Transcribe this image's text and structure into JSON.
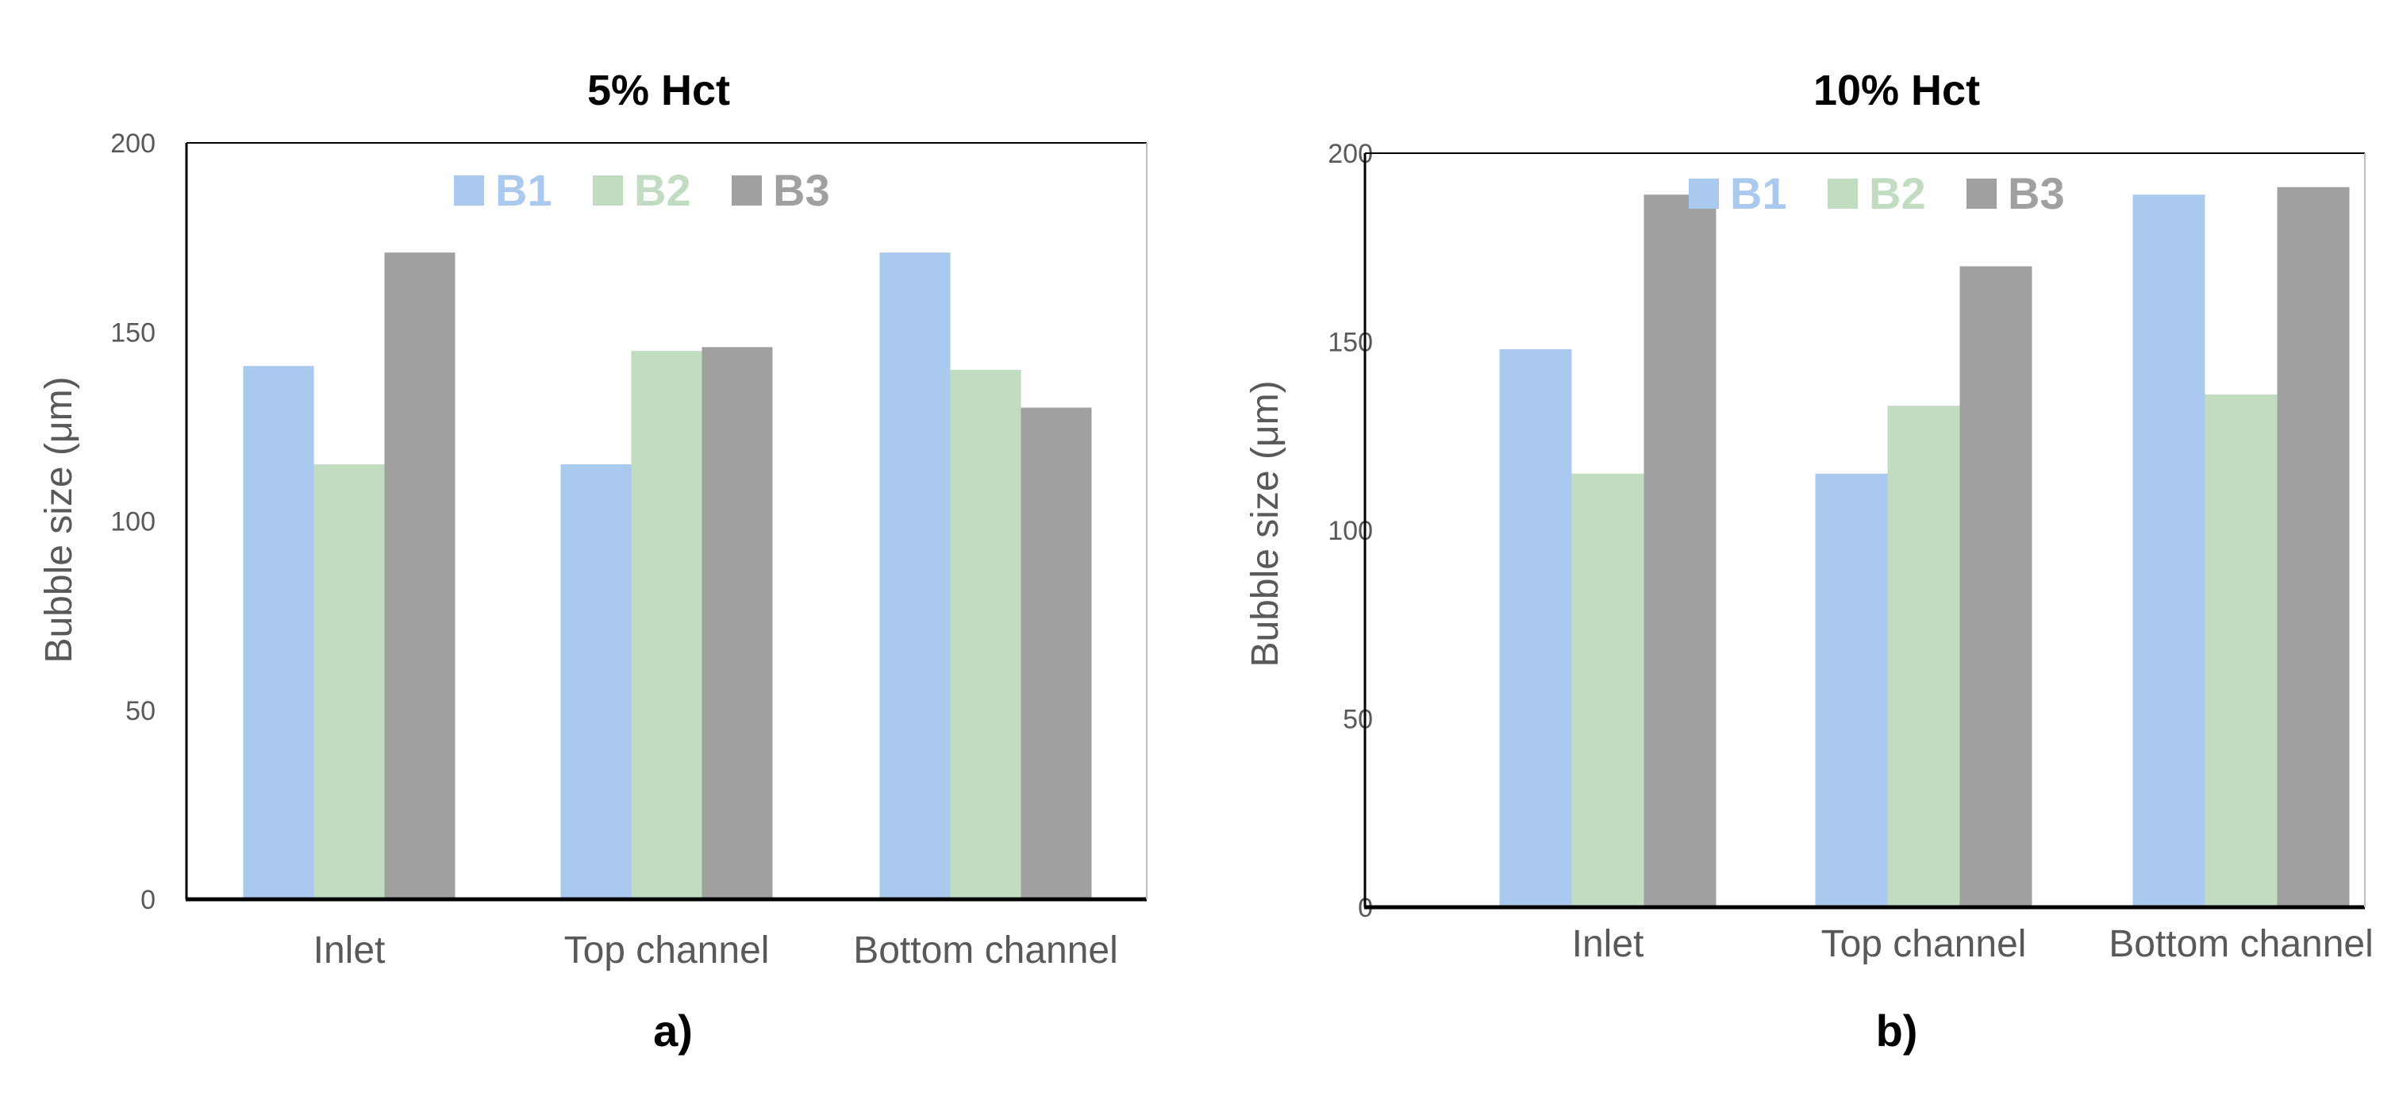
{
  "colors": {
    "B1": "#a9c9ef",
    "B2": "#c1dcc1",
    "B3": "#a0a0a0",
    "axis": "#000000",
    "text": "#595959"
  },
  "chart_data": [
    {
      "type": "bar",
      "title": "5% Hct",
      "panel_label": "a)",
      "categories": [
        "Inlet",
        "Top channel",
        "Bottom channel"
      ],
      "series": [
        {
          "name": "B1",
          "values": [
            141,
            115,
            171
          ]
        },
        {
          "name": "B2",
          "values": [
            115,
            145,
            140
          ]
        },
        {
          "name": "B3",
          "values": [
            171,
            146,
            130
          ]
        }
      ],
      "ylabel": "Bubble size (μm)",
      "xlabel": "",
      "ylim": [
        0,
        200
      ],
      "yticks": [
        "0",
        "50",
        "100",
        "150",
        "200"
      ],
      "legend": "top-center"
    },
    {
      "type": "bar",
      "title": "10% Hct",
      "panel_label": "b)",
      "categories": [
        "Inlet",
        "Top channel",
        "Bottom channel"
      ],
      "series": [
        {
          "name": "B1",
          "values": [
            148,
            115,
            189
          ]
        },
        {
          "name": "B2",
          "values": [
            115,
            133,
            136
          ]
        },
        {
          "name": "B3",
          "values": [
            189,
            170,
            191
          ]
        }
      ],
      "ylabel": "Bubble size (μm)",
      "xlabel": "",
      "ylim": [
        0,
        200
      ],
      "yticks": [
        "0",
        "50",
        "100",
        "150",
        "200"
      ],
      "legend": "top-center"
    }
  ]
}
